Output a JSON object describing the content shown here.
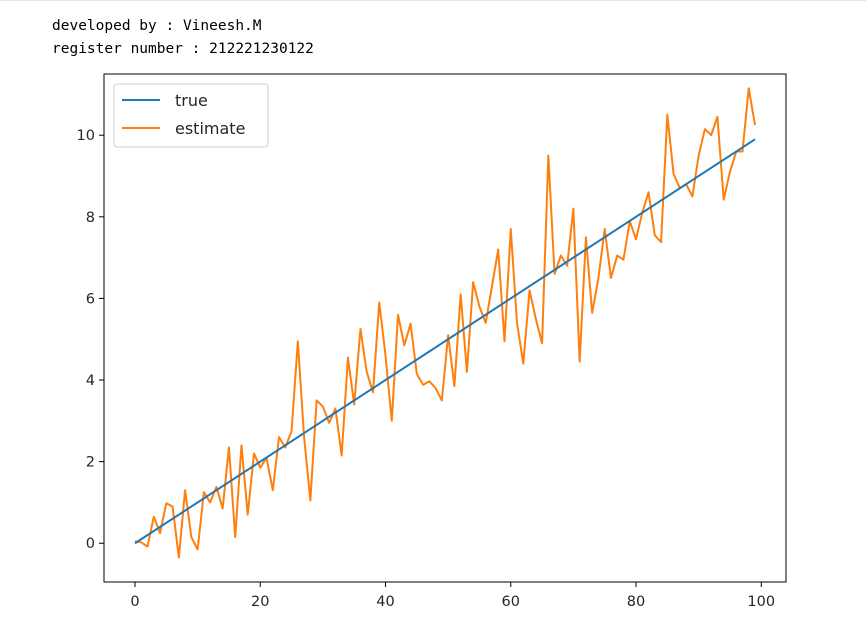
{
  "console": {
    "line1": "developed by : Vineesh.M",
    "line2": "register number : 212221230122"
  },
  "colors": {
    "true": "#1f77b4",
    "estimate": "#ff7f0e"
  },
  "chart_data": {
    "type": "line",
    "xlim": [
      -4.95,
      103.95
    ],
    "ylim": [
      -0.95,
      11.5
    ],
    "xticks": [
      0,
      20,
      40,
      60,
      80,
      100
    ],
    "yticks": [
      0,
      2,
      4,
      6,
      8,
      10
    ],
    "grid": false,
    "legend_placement": "upper-left",
    "series": [
      {
        "name": "true",
        "color": "#1f77b4",
        "x": [
          0,
          99
        ],
        "y": [
          0.0,
          9.9
        ]
      },
      {
        "name": "estimate",
        "color": "#ff7f0e",
        "y": [
          0.05,
          0.02,
          -0.08,
          0.65,
          0.25,
          0.98,
          0.9,
          -0.35,
          1.3,
          0.15,
          -0.15,
          1.25,
          1.0,
          1.38,
          0.85,
          2.35,
          0.15,
          2.4,
          0.7,
          2.2,
          1.85,
          2.1,
          1.3,
          2.6,
          2.35,
          2.75,
          4.95,
          2.6,
          1.05,
          3.5,
          3.35,
          2.95,
          3.3,
          2.15,
          4.55,
          3.4,
          5.25,
          4.2,
          3.7,
          5.9,
          4.6,
          3.0,
          5.6,
          4.85,
          5.38,
          4.15,
          3.88,
          3.97,
          3.8,
          3.5,
          5.1,
          3.85,
          6.1,
          4.2,
          6.4,
          5.8,
          5.4,
          6.3,
          7.2,
          4.95,
          7.7,
          5.4,
          4.4,
          6.2,
          5.5,
          4.9,
          9.5,
          6.6,
          7.05,
          6.8,
          8.2,
          4.45,
          7.5,
          5.65,
          6.5,
          7.7,
          6.5,
          7.05,
          6.95,
          7.9,
          7.45,
          8.1,
          8.6,
          7.55,
          7.38,
          10.5,
          9.05,
          8.7,
          8.8,
          8.5,
          9.5,
          10.15,
          10.0,
          10.45,
          8.42,
          9.1,
          9.6,
          9.6,
          11.15,
          10.25
        ]
      }
    ]
  }
}
